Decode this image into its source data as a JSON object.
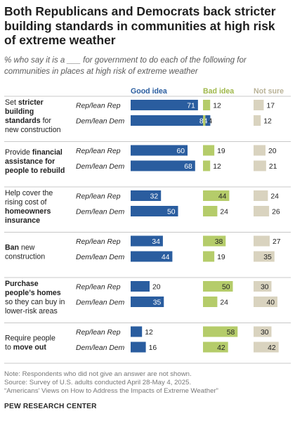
{
  "title": "Both Republicans and Democrats back stricter building standards in communities at high risk of extreme weather",
  "subtitle": "% who say it is a ___ for government to do each of the following for communities in places at high risk of extreme weather",
  "colors": {
    "good": "#2a5d9f",
    "bad": "#b5cc6a",
    "notsure": "#d9d3bf",
    "divider": "#c8c8c8"
  },
  "chart_data": {
    "type": "bar",
    "series_names": [
      "Good idea",
      "Bad idea",
      "Not sure"
    ],
    "series_colors": [
      "#2a5d9f",
      "#b5cc6a",
      "#d9d3bf"
    ],
    "groups": [
      "Rep/lean Rep",
      "Dem/lean Dem"
    ],
    "items": [
      {
        "label": [
          [
            [
              "Set ",
              false
            ],
            [
              "stricter",
              true
            ]
          ],
          [
            [
              "building",
              true
            ]
          ],
          [
            [
              "standards",
              true
            ],
            [
              " for",
              false
            ]
          ],
          [
            [
              "new construction",
              false
            ]
          ]
        ],
        "good": [
          71,
          84
        ],
        "bad": [
          12,
          4
        ],
        "notsure": [
          17,
          12
        ]
      },
      {
        "label": [
          [
            [
              "Provide ",
              false
            ],
            [
              "financial",
              true
            ]
          ],
          [
            [
              "assistance for",
              true
            ]
          ],
          [
            [
              "people to rebuild",
              true
            ]
          ]
        ],
        "good": [
          60,
          68
        ],
        "bad": [
          19,
          12
        ],
        "notsure": [
          20,
          21
        ]
      },
      {
        "label": [
          [
            [
              "Help cover the",
              false
            ]
          ],
          [
            [
              "rising cost of",
              false
            ]
          ],
          [
            [
              "homeowners",
              true
            ]
          ],
          [
            [
              "insurance",
              true
            ]
          ]
        ],
        "good": [
          32,
          50
        ],
        "bad": [
          44,
          24
        ],
        "notsure": [
          24,
          26
        ]
      },
      {
        "label": [
          [
            [
              "Ban",
              true
            ],
            [
              " new",
              false
            ]
          ],
          [
            [
              "construction",
              false
            ]
          ]
        ],
        "good": [
          34,
          44
        ],
        "bad": [
          38,
          19
        ],
        "notsure": [
          27,
          35
        ]
      },
      {
        "label": [
          [
            [
              "Purchase",
              true
            ]
          ],
          [
            [
              "people’s homes",
              true
            ]
          ],
          [
            [
              "so they can buy in",
              false
            ]
          ],
          [
            [
              "lower-risk areas",
              false
            ]
          ]
        ],
        "good": [
          20,
          35
        ],
        "bad": [
          50,
          24
        ],
        "notsure": [
          30,
          40
        ]
      },
      {
        "label": [
          [
            [
              "Require people",
              false
            ]
          ],
          [
            [
              "to ",
              false
            ],
            [
              "move out",
              true
            ]
          ]
        ],
        "good": [
          12,
          16
        ],
        "bad": [
          58,
          42
        ],
        "notsure": [
          30,
          42
        ]
      }
    ]
  },
  "notes": [
    "Note: Respondents who did not give an answer are not shown.",
    "Source: Survey of U.S. adults conducted April 28-May 4, 2025.",
    "“Americans’ Views on How to Address the Impacts of Extreme Weather”"
  ],
  "source_org": "PEW RESEARCH CENTER"
}
